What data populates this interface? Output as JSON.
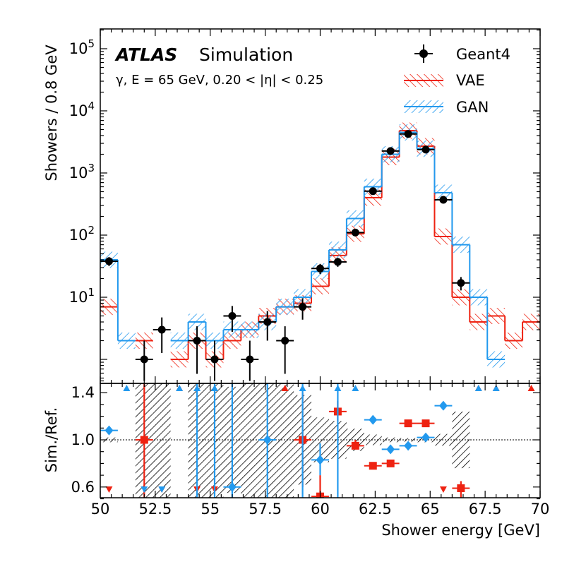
{
  "chart_data": [
    {
      "type": "histogram",
      "panel": "main",
      "title_bold": "ATLAS",
      "title": "Simulation",
      "subtitle": "γ, E = 65 GeV, 0.20 < |η| < 0.25",
      "xlim": [
        50,
        70
      ],
      "bin_edges": [
        50.0,
        50.8,
        51.6,
        52.4,
        53.2,
        54.0,
        54.8,
        55.6,
        56.4,
        57.2,
        58.0,
        58.8,
        59.6,
        60.4,
        61.2,
        62.0,
        62.8,
        63.6,
        64.4,
        65.2,
        66.0,
        66.8,
        67.6,
        68.4,
        69.2,
        70.0
      ],
      "ylabel": "Showers / 0.8 GeV",
      "yscale": "log",
      "ylim": [
        0.5,
        150000
      ],
      "ytick_labels": [
        "10^1",
        "10^2",
        "10^3",
        "10^4",
        "10^5"
      ],
      "legend": [
        "Geant4",
        "VAE",
        "GAN"
      ],
      "colors": {
        "Geant4": "#000000",
        "VAE": "#ee2211",
        "GAN": "#2299ee"
      },
      "series": [
        {
          "name": "Geant4",
          "kind": "points",
          "x": [
            50.4,
            51.2,
            52.0,
            52.8,
            53.6,
            54.4,
            55.2,
            56.0,
            56.8,
            57.6,
            58.4,
            59.2,
            60.0,
            60.8,
            61.6,
            62.4,
            63.2,
            64.0,
            64.8,
            65.6,
            66.4,
            67.2,
            68.0,
            68.8,
            69.6
          ],
          "values": [
            38,
            null,
            1,
            3,
            null,
            2,
            1,
            5,
            1,
            4,
            2,
            7,
            29,
            37,
            110,
            510,
            2260,
            4250,
            2380,
            370,
            17,
            null,
            null,
            null,
            null
          ]
        },
        {
          "name": "VAE",
          "kind": "hatched-step",
          "values": [
            7,
            null,
            2,
            null,
            1,
            2,
            1,
            2,
            3,
            5,
            7,
            8,
            15,
            47,
            105,
            400,
            1800,
            4800,
            2700,
            95,
            10,
            4,
            5,
            2,
            4
          ]
        },
        {
          "name": "GAN",
          "kind": "hatched-step",
          "values": [
            40,
            2,
            null,
            null,
            2,
            4,
            2,
            3,
            3,
            4,
            7,
            10,
            26,
            58,
            185,
            600,
            2000,
            4500,
            2450,
            480,
            70,
            10,
            1,
            null,
            null
          ]
        }
      ]
    },
    {
      "type": "ratio",
      "panel": "ratio",
      "xlabel": "Shower energy [GeV]",
      "ylabel": "Sim./Ref.",
      "xlim": [
        50,
        70
      ],
      "ylim": [
        0.5,
        1.5
      ],
      "xtick_labels": [
        "50",
        "52.5",
        "55",
        "57.5",
        "60",
        "62.5",
        "65",
        "67.5",
        "70"
      ],
      "ytick_labels": [
        "0.6",
        "1.0",
        "1.4"
      ],
      "reference_line": 1.0,
      "reference_band": [
        {
          "x0": 50.0,
          "x1": 50.8,
          "lo": 0.98,
          "hi": 1.02
        },
        {
          "x0": 51.6,
          "x1": 52.4,
          "lo": 0.0,
          "hi": 2.0
        },
        {
          "x0": 52.4,
          "x1": 53.2,
          "lo": 0.4,
          "hi": 1.6
        },
        {
          "x0": 54.0,
          "x1": 54.8,
          "lo": 0.3,
          "hi": 1.7
        },
        {
          "x0": 54.8,
          "x1": 55.6,
          "lo": 0.0,
          "hi": 2.0
        },
        {
          "x0": 55.6,
          "x1": 56.4,
          "lo": 0.55,
          "hi": 1.45
        },
        {
          "x0": 56.4,
          "x1": 57.2,
          "lo": 0.0,
          "hi": 2.0
        },
        {
          "x0": 57.2,
          "x1": 58.0,
          "lo": 0.5,
          "hi": 1.5
        },
        {
          "x0": 58.0,
          "x1": 58.8,
          "lo": 0.3,
          "hi": 1.7
        },
        {
          "x0": 58.8,
          "x1": 59.6,
          "lo": 0.62,
          "hi": 1.38
        },
        {
          "x0": 59.6,
          "x1": 60.4,
          "lo": 0.81,
          "hi": 1.19
        },
        {
          "x0": 60.4,
          "x1": 61.2,
          "lo": 0.84,
          "hi": 1.16
        },
        {
          "x0": 61.2,
          "x1": 62.0,
          "lo": 0.905,
          "hi": 1.095
        },
        {
          "x0": 62.0,
          "x1": 62.8,
          "lo": 0.955,
          "hi": 1.045
        },
        {
          "x0": 62.8,
          "x1": 63.6,
          "lo": 0.98,
          "hi": 1.02
        },
        {
          "x0": 63.6,
          "x1": 64.4,
          "lo": 0.985,
          "hi": 1.015
        },
        {
          "x0": 64.4,
          "x1": 65.2,
          "lo": 0.98,
          "hi": 1.02
        },
        {
          "x0": 65.2,
          "x1": 66.0,
          "lo": 0.95,
          "hi": 1.05
        },
        {
          "x0": 66.0,
          "x1": 66.8,
          "lo": 0.76,
          "hi": 1.24
        }
      ],
      "series": [
        {
          "name": "VAE",
          "points": [
            {
              "x": 52.0,
              "y": 1.0,
              "lo": 0.5,
              "hi": 1.5
            },
            {
              "x": 59.2,
              "y": 1.0,
              "lo": 0.6,
              "hi": 1.4
            },
            {
              "x": 60.0,
              "y": 0.52,
              "lo": 0.5,
              "hi": 0.7
            },
            {
              "x": 60.8,
              "y": 1.24,
              "lo": 1.16,
              "hi": 1.33
            },
            {
              "x": 61.6,
              "y": 0.95,
              "lo": 0.92,
              "hi": 1.0
            },
            {
              "x": 62.4,
              "y": 0.78
            },
            {
              "x": 63.2,
              "y": 0.8
            },
            {
              "x": 64.0,
              "y": 1.14
            },
            {
              "x": 64.8,
              "y": 1.14
            },
            {
              "x": 66.4,
              "y": 0.59,
              "lo": 0.5,
              "hi": 0.65
            }
          ],
          "arrows_up": [
            53.6,
            58.4,
            67.2,
            68.0,
            69.6
          ],
          "arrows_down": [
            50.4,
            52.8,
            54.4,
            55.2,
            65.6
          ]
        },
        {
          "name": "GAN",
          "points": [
            {
              "x": 50.4,
              "y": 1.08
            },
            {
              "x": 56.0,
              "y": 0.6,
              "lo": 0.5,
              "hi": 1.5
            },
            {
              "x": 57.6,
              "y": 1.0,
              "lo": 0.5,
              "hi": 1.5
            },
            {
              "x": 60.0,
              "y": 0.83,
              "lo": 0.7,
              "hi": 0.97
            },
            {
              "x": 62.4,
              "y": 1.17
            },
            {
              "x": 63.2,
              "y": 0.92
            },
            {
              "x": 64.0,
              "y": 0.95
            },
            {
              "x": 64.8,
              "y": 1.02
            },
            {
              "x": 65.6,
              "y": 1.29
            }
          ],
          "error_up_to_top": [
            54.4,
            55.2,
            59.2,
            60.8
          ],
          "arrows_up": [
            51.2,
            53.6,
            54.4,
            55.2,
            59.2,
            60.8,
            61.6,
            67.2,
            68.0
          ],
          "arrows_down": [
            52.0,
            52.8
          ]
        }
      ]
    }
  ]
}
